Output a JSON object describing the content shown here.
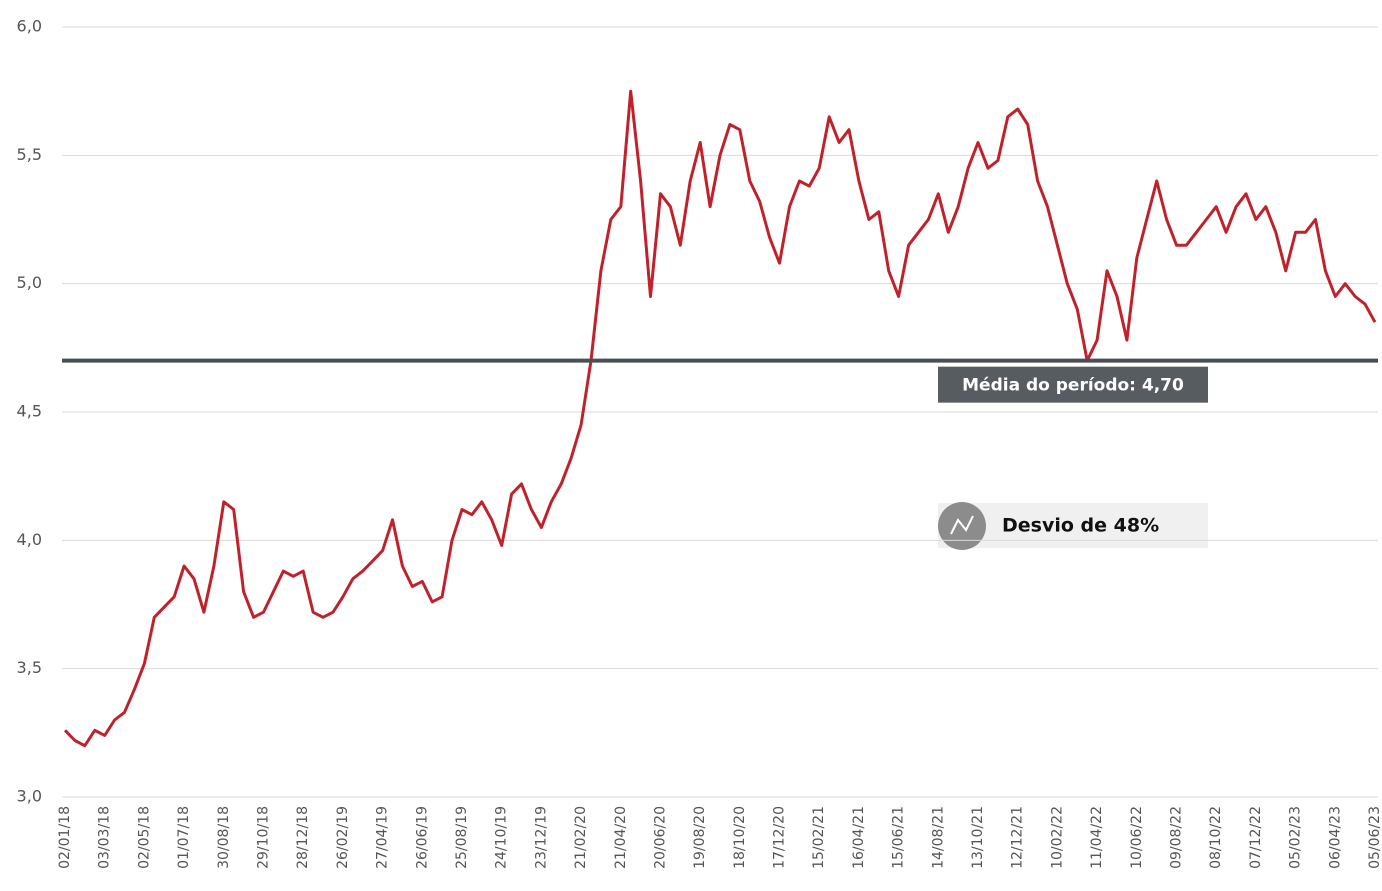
{
  "chart_data": {
    "type": "line",
    "categories": [
      "02/01/18",
      null,
      null,
      null,
      "03/03/18",
      null,
      null,
      null,
      "02/05/18",
      null,
      null,
      null,
      "01/07/18",
      null,
      null,
      null,
      "30/08/18",
      null,
      null,
      null,
      "29/10/18",
      null,
      null,
      null,
      "28/12/18",
      null,
      null,
      null,
      "26/02/19",
      null,
      null,
      null,
      "27/04/19",
      null,
      null,
      null,
      "26/06/19",
      null,
      null,
      null,
      "25/08/19",
      null,
      null,
      null,
      "24/10/19",
      null,
      null,
      null,
      "23/12/19",
      null,
      null,
      null,
      "21/02/20",
      null,
      null,
      null,
      "21/04/20",
      null,
      null,
      null,
      "20/06/20",
      null,
      null,
      null,
      "19/08/20",
      null,
      null,
      null,
      "18/10/20",
      null,
      null,
      null,
      "17/12/20",
      null,
      null,
      null,
      "15/02/21",
      null,
      null,
      null,
      "16/04/21",
      null,
      null,
      null,
      "15/06/21",
      null,
      null,
      null,
      "14/08/21",
      null,
      null,
      null,
      "13/10/21",
      null,
      null,
      null,
      "12/12/21",
      null,
      null,
      null,
      "10/02/22",
      null,
      null,
      null,
      "11/04/22",
      null,
      null,
      null,
      "10/06/22",
      null,
      null,
      null,
      "09/08/22",
      null,
      null,
      null,
      "08/10/22",
      null,
      null,
      null,
      "07/12/22",
      null,
      null,
      null,
      "05/02/23",
      null,
      null,
      null,
      "06/04/23",
      null,
      null,
      null,
      "05/06/23"
    ],
    "values": [
      3.26,
      3.22,
      3.2,
      3.26,
      3.24,
      3.3,
      3.33,
      3.42,
      3.52,
      3.7,
      3.74,
      3.78,
      3.9,
      3.85,
      3.72,
      3.9,
      4.15,
      4.12,
      3.8,
      3.7,
      3.72,
      3.8,
      3.88,
      3.86,
      3.88,
      3.72,
      3.7,
      3.72,
      3.78,
      3.85,
      3.88,
      3.92,
      3.96,
      4.08,
      3.9,
      3.82,
      3.84,
      3.76,
      3.78,
      4.0,
      4.12,
      4.1,
      4.15,
      4.08,
      3.98,
      4.18,
      4.22,
      4.12,
      4.05,
      4.15,
      4.22,
      4.32,
      4.45,
      4.7,
      5.05,
      5.25,
      5.3,
      5.75,
      5.4,
      4.95,
      5.35,
      5.3,
      5.15,
      5.4,
      5.55,
      5.3,
      5.5,
      5.62,
      5.6,
      5.4,
      5.32,
      5.18,
      5.08,
      5.3,
      5.4,
      5.38,
      5.45,
      5.65,
      5.55,
      5.6,
      5.4,
      5.25,
      5.28,
      5.05,
      4.95,
      5.15,
      5.2,
      5.25,
      5.35,
      5.2,
      5.3,
      5.45,
      5.55,
      5.45,
      5.48,
      5.65,
      5.68,
      5.62,
      5.4,
      5.3,
      5.15,
      5.0,
      4.9,
      4.7,
      4.78,
      5.05,
      4.95,
      4.78,
      5.1,
      5.25,
      5.4,
      5.25,
      5.15,
      5.15,
      5.2,
      5.25,
      5.3,
      5.2,
      5.3,
      5.35,
      5.25,
      5.3,
      5.2,
      5.05,
      5.2,
      5.2,
      5.25,
      5.05,
      4.95,
      5.0,
      4.95,
      4.92,
      4.85
    ],
    "color": "#c0222c",
    "ylim": [
      3,
      6
    ],
    "yticks": [
      {
        "value": 3,
        "label": "3,0"
      },
      {
        "value": 3.5,
        "label": "3,5"
      },
      {
        "value": 4,
        "label": "4,0"
      },
      {
        "value": 4.5,
        "label": "4,5"
      },
      {
        "value": 5,
        "label": "5,0"
      },
      {
        "value": 5.5,
        "label": "5,5"
      },
      {
        "value": 6,
        "label": "6,0"
      }
    ],
    "grid": true,
    "mean": {
      "value": 4.7,
      "label": "Média do período: 4,70"
    },
    "annotation": "Desvio de 48%"
  }
}
